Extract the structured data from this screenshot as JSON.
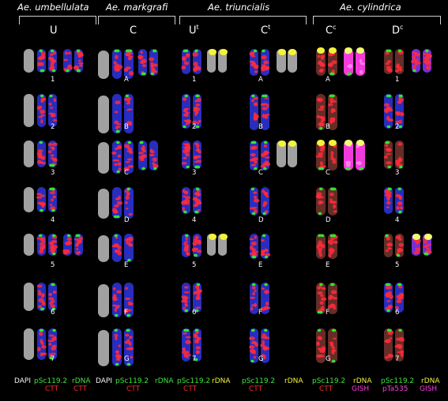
{
  "species": [
    {
      "name": "Ae. umbellulata"
    },
    {
      "name": "Ae. markgrafi"
    },
    {
      "name": "Ae. triuncialis"
    },
    {
      "name": "Ae. cylindrica"
    }
  ],
  "genomes": [
    {
      "base": "U",
      "sup": ""
    },
    {
      "base": "C",
      "sup": ""
    },
    {
      "base": "U",
      "sup": "t"
    },
    {
      "base": "C",
      "sup": "t"
    },
    {
      "base": "C",
      "sup": "c"
    },
    {
      "base": "D",
      "sup": "c"
    }
  ],
  "row_labels": {
    "U": [
      "1",
      "2",
      "3",
      "4",
      "5",
      "6",
      "7"
    ],
    "C": [
      "A",
      "B",
      "C",
      "D",
      "E",
      "F",
      "G"
    ],
    "Ut": [
      "1",
      "2",
      "3",
      "4",
      "5",
      "6",
      "7"
    ],
    "Ct": [
      "A",
      "B",
      "C",
      "D",
      "E",
      "F",
      "G"
    ],
    "Cc": [
      "A",
      "B",
      "C",
      "D",
      "E",
      "F",
      "G"
    ],
    "Dc": [
      "1",
      "2",
      "3",
      "4",
      "5",
      "6",
      "7"
    ]
  },
  "legend": {
    "umb_dapi": "DAPI",
    "umb_psc": "pSc119.2",
    "umb_ctt": "CTT",
    "umb_rdna": "rDNA",
    "umb_ctt2": "CTT",
    "mk_dapi": "DAPI",
    "mk_psc": "pSc119.2",
    "mk_ctt": "CTT",
    "mk_rdna": "rDNA",
    "ut_psc": "pSc119.2",
    "ut_ctt": "CTT",
    "ut_rdna": "rDNA",
    "ct_psc": "pSc119.2",
    "ct_ctt": "CTT",
    "ct_rdna": "rDNA",
    "cc_psc": "pSc119.2",
    "cc_ctt": "CTT",
    "cc_rdna": "rDNA",
    "cc_gish": "GISH",
    "dc_psc": "pSc119.2",
    "dc_pta": "pTa535",
    "dc_rdna": "rDNA",
    "dc_gish": "GISH"
  },
  "colors": {
    "dapi": "#bdbdbd",
    "blue": "#2a2fc8",
    "green": "#2ee62e",
    "red": "#ff2a3a",
    "yellow": "#f3f33a",
    "magenta": "#ff3ee6",
    "brown": "#6a2f2a"
  }
}
